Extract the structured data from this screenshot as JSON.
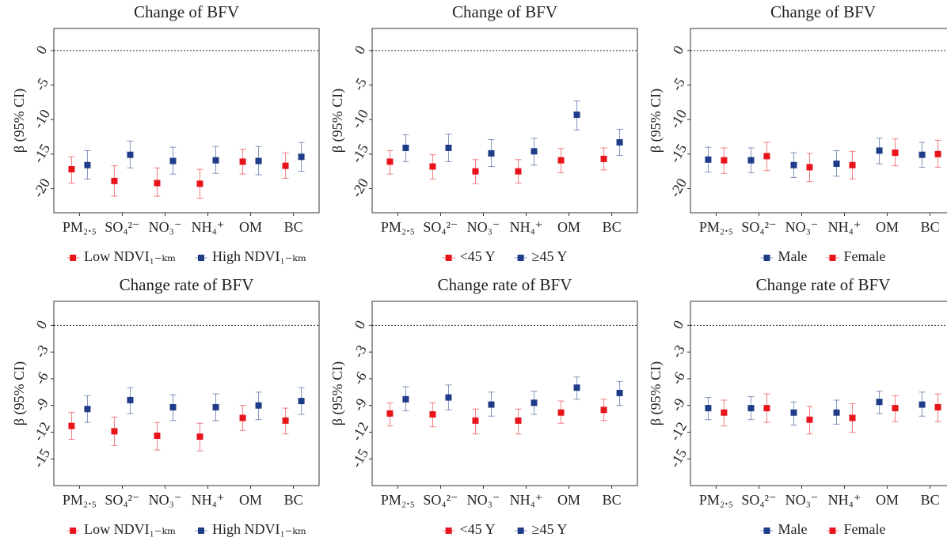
{
  "chart_data": [
    {
      "type": "errorbar",
      "title": "Change of BFV",
      "ylabel": "β (95% CI)",
      "categories": [
        "PM₂.₅",
        "SO₄²⁻",
        "NO₃⁻",
        "NH₄⁺",
        "OM",
        "BC"
      ],
      "ylim": [
        -23.5,
        3.2
      ],
      "yticks": [
        0,
        -5,
        -10,
        -15,
        -20
      ],
      "hline": 0,
      "series": [
        {
          "name": "Low NDVI₁₋ₖₘ",
          "color": "#e8141c",
          "values": [
            -17.2,
            -18.9,
            -19.2,
            -19.3,
            -16.1,
            -16.7
          ],
          "lower": [
            -19.2,
            -21.1,
            -21.1,
            -21.4,
            -17.9,
            -18.5
          ],
          "upper": [
            -15.4,
            -16.7,
            -17,
            -17.2,
            -14.3,
            -14.8
          ]
        },
        {
          "name": "High NDVI₁₋ₖₘ",
          "color": "#1f3c88",
          "values": [
            -16.6,
            -15.1,
            -16,
            -15.9,
            -16,
            -15.4
          ],
          "lower": [
            -18.6,
            -17,
            -17.9,
            -17.8,
            -18,
            -17.5
          ],
          "upper": [
            -14.5,
            -13.1,
            -14,
            -13.9,
            -13.9,
            -13.3
          ]
        }
      ]
    },
    {
      "type": "errorbar",
      "title": "Change of BFV",
      "ylabel": "β (95% CI)",
      "categories": [
        "PM₂.₅",
        "SO₄²⁻",
        "NO₃⁻",
        "NH₄⁺",
        "OM",
        "BC"
      ],
      "ylim": [
        -23.5,
        3.2
      ],
      "yticks": [
        0,
        -5,
        -10,
        -15,
        -20
      ],
      "hline": 0,
      "series": [
        {
          "name": "<45 Y",
          "color": "#e8141c",
          "values": [
            -16.1,
            -16.8,
            -17.5,
            -17.5,
            -15.9,
            -15.7
          ],
          "lower": [
            -17.9,
            -18.6,
            -19.3,
            -19.2,
            -17.7,
            -17.3
          ],
          "upper": [
            -14.5,
            -15.1,
            -15.8,
            -15.8,
            -14.2,
            -14.1
          ]
        },
        {
          "name": "≥45 Y",
          "color": "#1f3c88",
          "values": [
            -14.1,
            -14.1,
            -14.9,
            -14.6,
            -9.3,
            -13.3
          ],
          "lower": [
            -16.1,
            -16.1,
            -16.8,
            -16.6,
            -11.5,
            -15.2
          ],
          "upper": [
            -12.2,
            -12.1,
            -12.9,
            -12.7,
            -7.3,
            -11.4
          ]
        }
      ]
    },
    {
      "type": "errorbar",
      "title": "Change of BFV",
      "ylabel": "β (95% CI)",
      "categories": [
        "PM₂.₅",
        "SO₄²⁻",
        "NO₃⁻",
        "NH₄⁺",
        "OM",
        "BC"
      ],
      "ylim": [
        -23.5,
        3.2
      ],
      "yticks": [
        0,
        -5,
        -10,
        -15,
        -20
      ],
      "hline": 0,
      "series": [
        {
          "name": "Male",
          "color": "#1f3c88",
          "values": [
            -15.8,
            -15.9,
            -16.6,
            -16.4,
            -14.5,
            -15.1
          ],
          "lower": [
            -17.6,
            -17.7,
            -18.4,
            -18.2,
            -16.4,
            -16.9
          ],
          "upper": [
            -14,
            -14.1,
            -14.8,
            -14.5,
            -12.7,
            -13.3
          ]
        },
        {
          "name": "Female",
          "color": "#e8141c",
          "values": [
            -15.9,
            -15.3,
            -16.9,
            -16.6,
            -14.8,
            -15
          ],
          "lower": [
            -17.8,
            -17.4,
            -19,
            -18.6,
            -16.7,
            -16.9
          ],
          "upper": [
            -14.1,
            -13.3,
            -14.9,
            -14.6,
            -12.8,
            -13
          ]
        }
      ]
    },
    {
      "type": "errorbar",
      "title": "Change rate of BFV",
      "ylabel": "β (95% CI)",
      "categories": [
        "PM₂.₅",
        "SO₄²⁻",
        "NO₃⁻",
        "NH₄⁺",
        "OM",
        "BC"
      ],
      "ylim": [
        -18,
        2.7
      ],
      "yticks": [
        0,
        -3,
        -6,
        -9,
        -12,
        -15
      ],
      "hline": 0,
      "series": [
        {
          "name": "Low NDVI₁₋ₖₘ",
          "color": "#e8141c",
          "values": [
            -11.3,
            -11.9,
            -12.4,
            -12.5,
            -10.4,
            -10.7
          ],
          "lower": [
            -12.8,
            -13.5,
            -14,
            -14.1,
            -11.8,
            -12.2
          ],
          "upper": [
            -9.8,
            -10.3,
            -10.9,
            -11,
            -9,
            -9.3
          ]
        },
        {
          "name": "High NDVI₁₋ₖₘ",
          "color": "#1f3c88",
          "values": [
            -9.4,
            -8.4,
            -9.2,
            -9.2,
            -9,
            -8.5
          ],
          "lower": [
            -10.9,
            -9.9,
            -10.7,
            -10.7,
            -10.6,
            -10
          ],
          "upper": [
            -7.9,
            -7,
            -7.8,
            -7.7,
            -7.5,
            -7
          ]
        }
      ]
    },
    {
      "type": "errorbar",
      "title": "Change rate of BFV",
      "ylabel": "β (95% CI)",
      "categories": [
        "PM₂.₅",
        "SO₄²⁻",
        "NO₃⁻",
        "NH₄⁺",
        "OM",
        "BC"
      ],
      "ylim": [
        -18,
        2.7
      ],
      "yticks": [
        0,
        -3,
        -6,
        -9,
        -12,
        -15
      ],
      "hline": 0,
      "series": [
        {
          "name": "<45 Y",
          "color": "#e8141c",
          "values": [
            -9.9,
            -10,
            -10.7,
            -10.7,
            -9.8,
            -9.5
          ],
          "lower": [
            -11.3,
            -11.4,
            -12.2,
            -12.2,
            -11,
            -10.7
          ],
          "upper": [
            -8.7,
            -8.7,
            -9.4,
            -9.4,
            -8.5,
            -8.3
          ]
        },
        {
          "name": "≥45 Y",
          "color": "#1f3c88",
          "values": [
            -8.3,
            -8.1,
            -8.9,
            -8.7,
            -7,
            -7.6
          ],
          "lower": [
            -9.6,
            -9.5,
            -10.2,
            -10,
            -8.3,
            -9
          ],
          "upper": [
            -6.9,
            -6.7,
            -7.5,
            -7.4,
            -5.8,
            -6.3
          ]
        }
      ]
    },
    {
      "type": "errorbar",
      "title": "Change rate of BFV",
      "ylabel": "β (95% CI)",
      "categories": [
        "PM₂.₅",
        "SO₄²⁻",
        "NO₃⁻",
        "NH₄⁺",
        "OM",
        "BC"
      ],
      "ylim": [
        -18,
        2.7
      ],
      "yticks": [
        0,
        -3,
        -6,
        -9,
        -12,
        -15
      ],
      "hline": 0,
      "series": [
        {
          "name": "Male",
          "color": "#1f3c88",
          "values": [
            -9.3,
            -9.3,
            -9.8,
            -9.8,
            -8.6,
            -8.9
          ],
          "lower": [
            -10.6,
            -10.6,
            -11.2,
            -11.1,
            -9.9,
            -10.2
          ],
          "upper": [
            -8.1,
            -8,
            -8.6,
            -8.4,
            -7.4,
            -7.5
          ]
        },
        {
          "name": "Female",
          "color": "#e8141c",
          "values": [
            -9.8,
            -9.3,
            -10.6,
            -10.4,
            -9.3,
            -9.2
          ],
          "lower": [
            -11.3,
            -10.9,
            -12.2,
            -12,
            -10.8,
            -10.8
          ],
          "upper": [
            -8.4,
            -7.7,
            -9.1,
            -8.8,
            -7.9,
            -7.7
          ]
        }
      ]
    }
  ]
}
